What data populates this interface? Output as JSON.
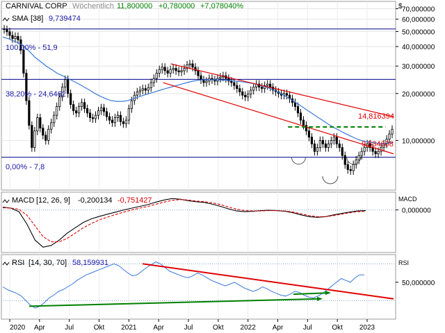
{
  "header": {
    "symbol": "CARNIVAL CORP",
    "period": "Wöchentlich",
    "last": "11,800000",
    "change": "+0,780000",
    "change_pct": "+7,078040%",
    "currency": "$"
  },
  "price_panel": {
    "sma_label": "SMA",
    "sma_period": "[38]",
    "sma_value": "9,739474",
    "fib_labels": [
      "100,00% - 51,9",
      "38,20% - 24,6462",
      "0,00% - 7,8"
    ],
    "fib_levels": [
      51.9,
      24.6462,
      7.8
    ],
    "price_label_upper": "14,816394",
    "price_label_lower": "9,534608",
    "y_ticks": [
      "70,000000",
      "60,000000",
      "50,000000",
      "40,000000",
      "30,000000",
      "20,000000",
      "10,000000"
    ],
    "y_tick_values": [
      70,
      60,
      50,
      40,
      30,
      20,
      10
    ]
  },
  "macd_panel": {
    "label": "MACD",
    "params": "[12, 26, 9]",
    "value1": "-0,200134",
    "value2": "-0,751427",
    "axis_title": "MACD",
    "y_ticks": [
      "0,000000"
    ]
  },
  "rsi_panel": {
    "label": "RSI",
    "params": "[14, 30, 70]",
    "value": "58,159931",
    "axis_title": "RSI",
    "y_ticks": [
      "50,000000"
    ]
  },
  "x_axis": {
    "labels": [
      "2020",
      "Apr",
      "Jul",
      "Okt",
      "2021",
      "Apr",
      "Jul",
      "Okt",
      "2022",
      "Apr",
      "Jul",
      "Okt",
      "2023"
    ]
  },
  "colors": {
    "background": "#ffffff",
    "up_text": "#008000",
    "down_text": "#c00000",
    "blue_text": "#1a1aa6",
    "candle": "#000000",
    "sma": "#3a78d8",
    "trend_red": "#e00000",
    "support_green": "#008000",
    "fib_line": "#00008b"
  },
  "chart_data": [
    {
      "type": "candlestick",
      "title": "CARNIVAL CORP Wöchentlich",
      "scale": "log",
      "ylim": [
        4.8,
        78
      ],
      "x_start": "2020-01",
      "x_end": "2023-04",
      "close": [
        51.5,
        49.8,
        47.2,
        45.0,
        46.5,
        44.2,
        38.0,
        27.0,
        18.0,
        12.5,
        9.0,
        11.5,
        14.0,
        12.0,
        10.8,
        10.0,
        11.8,
        13.0,
        14.5,
        16.5,
        19.0,
        22.0,
        24.6,
        20.0,
        17.0,
        15.5,
        15.0,
        16.5,
        17.5,
        16.0,
        15.0,
        14.0,
        13.8,
        14.5,
        15.5,
        16.2,
        15.3,
        14.2,
        13.5,
        13.0,
        14.0,
        14.5,
        13.2,
        12.8,
        13.5,
        16.0,
        18.0,
        19.5,
        20.5,
        21.0,
        21.5,
        21.0,
        21.8,
        23.5,
        25.0,
        27.0,
        28.5,
        29.5,
        28.0,
        27.0,
        28.5,
        29.0,
        28.0,
        27.5,
        28.0,
        29.0,
        30.5,
        31.0,
        29.5,
        28.0,
        26.0,
        24.5,
        23.5,
        24.0,
        25.0,
        24.5,
        24.0,
        25.0,
        25.5,
        26.0,
        25.0,
        24.0,
        23.5,
        22.5,
        21.5,
        20.5,
        19.5,
        19.0,
        19.8,
        21.0,
        22.0,
        23.0,
        22.0,
        21.5,
        22.5,
        23.0,
        22.0,
        21.0,
        20.5,
        20.0,
        19.5,
        20.0,
        19.5,
        18.5,
        17.5,
        16.5,
        15.0,
        13.5,
        12.5,
        11.5,
        10.5,
        9.5,
        8.5,
        9.0,
        10.0,
        9.5,
        9.0,
        9.5,
        10.0,
        10.5,
        9.5,
        9.0,
        8.0,
        7.0,
        6.5,
        6.4,
        7.0,
        7.5,
        8.0,
        8.5,
        9.0,
        9.5,
        9.0,
        8.5,
        8.2,
        8.5,
        9.0,
        9.5,
        10.2,
        11.0,
        11.8
      ],
      "sma": {
        "name": "SMA [38]",
        "values": [
          46.0,
          45.0,
          43.5,
          42.0,
          40.0,
          37.0,
          34.0,
          32.0,
          30.0,
          28.5,
          27.0,
          26.0,
          25.0,
          24.0,
          23.0,
          22.0,
          21.0,
          20.0,
          19.2,
          18.5,
          18.0,
          17.8,
          17.8,
          18.0,
          18.5,
          19.0,
          19.5,
          20.0,
          20.5,
          21.0,
          21.5,
          22.0,
          22.5,
          23.0,
          23.5,
          24.0,
          24.3,
          24.5,
          24.5,
          24.5,
          24.4,
          24.3,
          24.2,
          24.0,
          23.8,
          23.5,
          23.2,
          22.8,
          22.3,
          21.7,
          21.0,
          20.2,
          19.3,
          18.4,
          17.5,
          16.6,
          15.7,
          14.9,
          14.1,
          13.4,
          12.7,
          12.1,
          11.6,
          11.1,
          10.7,
          10.3,
          10.0,
          9.8,
          9.7,
          9.6,
          9.5,
          9.6,
          9.7
        ]
      },
      "fibonacci": [
        {
          "level": "100,00%",
          "value": 51.9
        },
        {
          "level": "38,20%",
          "value": 24.6462
        },
        {
          "level": "0,00%",
          "value": 7.8
        }
      ],
      "annotations": [
        "14,816394",
        "9,534608"
      ]
    },
    {
      "type": "line",
      "title": "MACD [12, 26, 9]",
      "series": [
        {
          "name": "MACD",
          "values": [
            0.8,
            0.5,
            -0.5,
            -4,
            -8.5,
            -10.5,
            -10,
            -8.5,
            -6.5,
            -5,
            -3.5,
            -2.5,
            -1.8,
            -1.2,
            -0.6,
            0,
            0.5,
            1.0,
            1.5,
            2.2,
            2.8,
            3.2,
            3.0,
            2.6,
            2.3,
            2.1,
            1.6,
            1.0,
            0.3,
            -0.3,
            -0.5,
            -0.4,
            -0.2,
            -0.1,
            -0.2,
            -0.4,
            -0.8,
            -1.4,
            -1.9,
            -2.1,
            -1.9,
            -1.4,
            -1.0,
            -0.6,
            -0.3,
            -0.2
          ]
        },
        {
          "name": "Signal",
          "values": [
            0.6,
            0.5,
            0.2,
            -1.5,
            -4.5,
            -7.5,
            -9,
            -9,
            -8,
            -6.5,
            -5,
            -3.8,
            -2.8,
            -2.0,
            -1.3,
            -0.6,
            0,
            0.5,
            1.0,
            1.6,
            2.2,
            2.7,
            2.9,
            2.8,
            2.5,
            2.3,
            2.0,
            1.5,
            0.8,
            0.2,
            -0.2,
            -0.3,
            -0.3,
            -0.2,
            -0.2,
            -0.3,
            -0.6,
            -1.1,
            -1.6,
            -1.9,
            -1.9,
            -1.6,
            -1.2,
            -0.8,
            -0.5,
            -0.4
          ]
        }
      ],
      "values_shown": [
        "-0,200134",
        "-0,751427"
      ]
    },
    {
      "type": "line",
      "title": "RSI [14, 30, 70]",
      "levels": [
        30,
        70
      ],
      "series": [
        {
          "name": "RSI",
          "values": [
            45,
            42,
            40,
            38,
            35,
            30,
            25,
            22,
            24,
            28,
            33,
            36,
            40,
            42,
            45,
            48,
            52,
            55,
            58,
            60,
            62,
            64,
            66,
            68,
            70,
            68,
            64,
            60,
            57,
            58,
            62,
            66,
            69,
            72,
            70,
            66,
            62,
            60,
            58,
            56,
            55,
            57,
            60,
            58,
            55,
            52,
            50,
            48,
            46,
            48,
            50,
            47,
            44,
            42,
            40,
            42,
            45,
            43,
            40,
            38,
            36,
            35,
            37,
            40,
            39,
            36,
            34,
            33,
            35,
            38,
            42,
            46,
            50,
            54,
            52,
            50,
            55,
            58,
            58
          ]
        }
      ],
      "value_shown": "58,159931"
    }
  ]
}
